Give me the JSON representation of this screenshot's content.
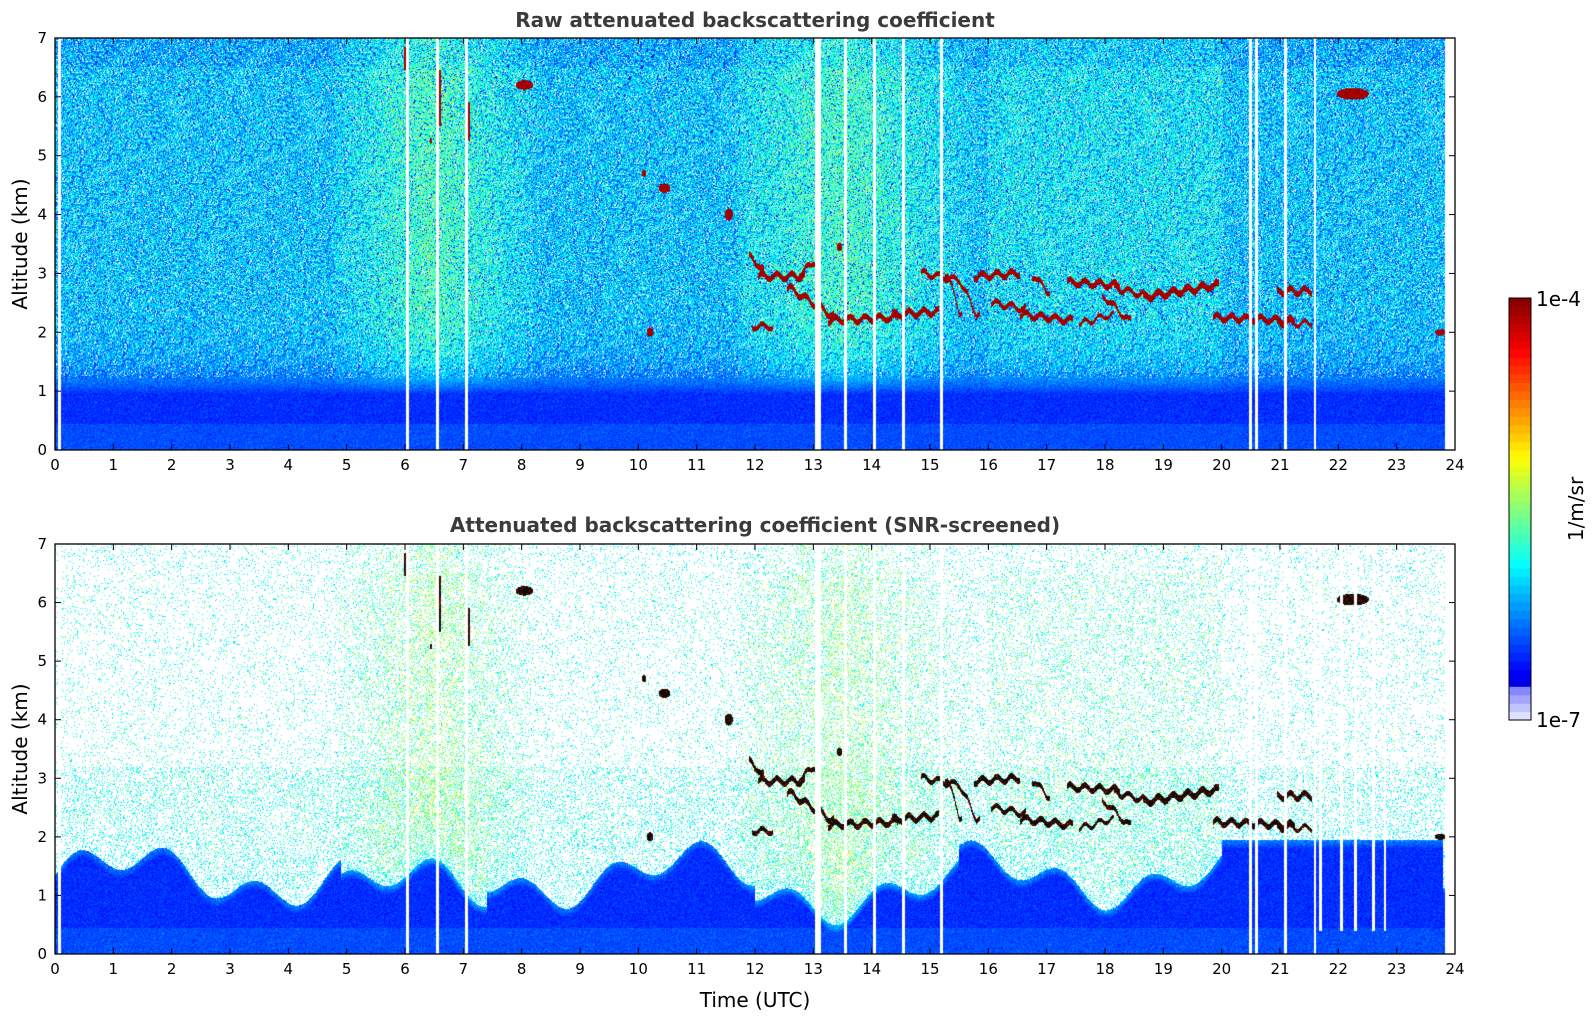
{
  "chart_data": [
    {
      "type": "heatmap",
      "title": "Raw attenuated backscattering coefficient",
      "xlabel": "",
      "ylabel": "Altitude (km)",
      "xlim": [
        0,
        24
      ],
      "ylim": [
        0,
        7
      ],
      "xticks": [
        "0",
        "1",
        "2",
        "3",
        "4",
        "5",
        "6",
        "7",
        "8",
        "9",
        "10",
        "11",
        "12",
        "13",
        "14",
        "15",
        "16",
        "17",
        "18",
        "19",
        "20",
        "21",
        "22",
        "23",
        "24"
      ],
      "yticks": [
        "0",
        "1",
        "2",
        "3",
        "4",
        "5",
        "6",
        "7"
      ],
      "grid": false,
      "screened": false
    },
    {
      "type": "heatmap",
      "title": "Attenuated backscattering coefficient (SNR-screened)",
      "xlabel": "Time (UTC)",
      "ylabel": "Altitude (km)",
      "xlim": [
        0,
        24
      ],
      "ylim": [
        0,
        7
      ],
      "xticks": [
        "0",
        "1",
        "2",
        "3",
        "4",
        "5",
        "6",
        "7",
        "8",
        "9",
        "10",
        "11",
        "12",
        "13",
        "14",
        "15",
        "16",
        "17",
        "18",
        "19",
        "20",
        "21",
        "22",
        "23",
        "24"
      ],
      "yticks": [
        "0",
        "1",
        "2",
        "3",
        "4",
        "5",
        "6",
        "7"
      ],
      "grid": false,
      "screened": true
    }
  ],
  "colorbar": {
    "label": "1/m/sr",
    "min_label": "1e-7",
    "max_label": "1e-4",
    "colormap": "jet",
    "scale": "log",
    "range": [
      1e-07,
      0.0001
    ]
  },
  "features": {
    "cloud_segments": [
      [
        11.95,
        3.3,
        12.1,
        3.05,
        6
      ],
      [
        12.1,
        2.95,
        12.8,
        2.95,
        6
      ],
      [
        12.8,
        3.0,
        13.0,
        3.2,
        5
      ],
      [
        12.6,
        2.75,
        13.3,
        2.3,
        6
      ],
      [
        13.3,
        2.2,
        14.4,
        2.25,
        6
      ],
      [
        14.4,
        2.3,
        15.1,
        2.35,
        6
      ],
      [
        14.9,
        3.0,
        15.4,
        2.9,
        5
      ],
      [
        15.3,
        3.0,
        15.5,
        2.35,
        5
      ],
      [
        15.5,
        2.9,
        15.8,
        2.3,
        5
      ],
      [
        15.8,
        2.95,
        16.5,
        3.0,
        6
      ],
      [
        16.1,
        2.5,
        16.6,
        2.4,
        5
      ],
      [
        16.6,
        2.3,
        17.4,
        2.2,
        6
      ],
      [
        16.8,
        2.95,
        17.0,
        2.7,
        5
      ],
      [
        17.4,
        2.85,
        18.2,
        2.8,
        6
      ],
      [
        18.0,
        2.6,
        18.4,
        2.2,
        5
      ],
      [
        18.2,
        2.75,
        18.8,
        2.6,
        5
      ],
      [
        18.7,
        2.6,
        19.9,
        2.8,
        7
      ],
      [
        17.6,
        2.15,
        18.1,
        2.3,
        4
      ],
      [
        19.9,
        2.25,
        21.2,
        2.2,
        6
      ],
      [
        21.0,
        2.15,
        21.5,
        2.15,
        4
      ],
      [
        21.0,
        2.7,
        21.5,
        2.7,
        6
      ],
      [
        12.0,
        2.1,
        12.25,
        2.1,
        5
      ]
    ],
    "blobs": [
      [
        22.25,
        6.05,
        0.28,
        0.1
      ],
      [
        11.55,
        4.0,
        0.07,
        0.1
      ],
      [
        10.45,
        4.45,
        0.1,
        0.08
      ],
      [
        10.2,
        2.0,
        0.06,
        0.08
      ],
      [
        13.45,
        3.45,
        0.05,
        0.07
      ],
      [
        23.75,
        2.0,
        0.1,
        0.05
      ],
      [
        8.05,
        6.2,
        0.15,
        0.08
      ],
      [
        10.1,
        4.7,
        0.04,
        0.06
      ]
    ],
    "streaks": [
      [
        6.0,
        6.45,
        6.85
      ],
      [
        6.6,
        5.5,
        6.45
      ],
      [
        7.1,
        5.25,
        5.9
      ],
      [
        6.45,
        5.2,
        5.3
      ]
    ],
    "gap_times": [
      0.08,
      6.05,
      6.55,
      7.05,
      13.05,
      13.1,
      13.55,
      14.05,
      14.55,
      15.2,
      20.5,
      20.6,
      21.1,
      21.6
    ],
    "gap_times_upper_only": [
      21.7,
      22.05,
      22.3,
      22.6,
      22.8
    ]
  }
}
